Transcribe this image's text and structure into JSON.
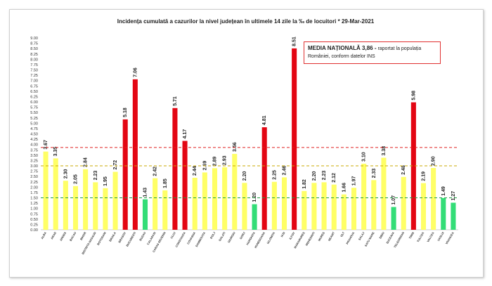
{
  "chart_data": {
    "type": "bar",
    "title": "Incidența cumulată a cazurilor la nivel județean în ultimele 14 zile la ‰ de locuitori * 29-Mar-2021",
    "ylim": [
      0,
      9
    ],
    "yticks": [
      "0.00",
      "0.25",
      "0.50",
      "0.75",
      "1.00",
      "1.25",
      "1.50",
      "1.75",
      "2.00",
      "2.25",
      "2.50",
      "2.75",
      "3.00",
      "3.25",
      "3.50",
      "3.75",
      "4.00",
      "4.25",
      "4.50",
      "4.75",
      "5.00",
      "5.25",
      "5.50",
      "5.75",
      "6.00",
      "6.25",
      "6.50",
      "6.75",
      "7.00",
      "7.25",
      "7.50",
      "7.75",
      "8.00",
      "8.25",
      "8.50",
      "8.75",
      "9.00"
    ],
    "categories": [
      "ALBA",
      "ARAD",
      "ARGES",
      "BACAU",
      "BIHOR",
      "BISTRITA NASAUD",
      "BOTOSANI",
      "BRAILA",
      "BRASOV",
      "BUCURESTI",
      "BUZAU",
      "CALARASI",
      "CARAS SEVERIN",
      "CLUJ",
      "CONSTANTA",
      "COVASNA",
      "DAMBOVITA",
      "DOLJ",
      "GALATI",
      "GIURGIU",
      "GORJ",
      "HARGHITA",
      "HUNEDOARA",
      "IALOMITA",
      "IASI",
      "ILFOV",
      "MARAMURES",
      "MEHEDINTI",
      "MURES",
      "NEAMT",
      "OLT",
      "PRAHOVA",
      "SALAJ",
      "SATU MARE",
      "SIBIU",
      "SUCEAVA",
      "TELEORMAN",
      "TIMIS",
      "TULCEA",
      "VALCEA",
      "VASLUI",
      "VRANCEA"
    ],
    "values": [
      3.67,
      3.35,
      2.3,
      2.05,
      2.84,
      2.23,
      1.95,
      2.72,
      5.18,
      7.06,
      1.43,
      2.42,
      1.85,
      5.71,
      4.17,
      2.44,
      2.69,
      2.89,
      2.93,
      3.56,
      2.2,
      1.2,
      4.81,
      2.25,
      2.46,
      8.51,
      1.82,
      2.2,
      2.23,
      2.12,
      1.66,
      1.97,
      3.1,
      2.33,
      3.38,
      1.07,
      2.48,
      5.98,
      2.19,
      2.9,
      1.49,
      1.27
    ],
    "labels": [
      "3.67",
      "3.35",
      "2.30",
      "2.05",
      "2.84",
      "2.23",
      "1.95",
      "2.72",
      "5.18",
      "7.06",
      "1.43",
      "2.42",
      "1.85",
      "5.71",
      "4.17",
      "2.44",
      "2.69",
      "2.89",
      "2.93",
      "3.56",
      "2.20",
      "1.20",
      "4.81",
      "2.25",
      "2.46",
      "8.51",
      "1.82",
      "2.20",
      "2.23",
      "2.12",
      "1.66",
      "1.97",
      "3.10",
      "2.33",
      "3.38",
      "1.07",
      "2.48",
      "5.98",
      "2.19",
      "2.90",
      "1.49",
      "1.27"
    ],
    "thresholds": [
      {
        "value": 3.86,
        "color": "#e02020"
      },
      {
        "value": 3.0,
        "color": "#c8a800"
      },
      {
        "value": 1.5,
        "color": "#20a040"
      }
    ],
    "colors": {
      "red": "#e30613",
      "yellow": "#ffff66",
      "green": "#33dd77"
    },
    "annotation": {
      "bold": "MEDIA NAȚIONALĂ  3,86 -",
      "text": " raportat la populația României, conform datelor INS"
    }
  }
}
